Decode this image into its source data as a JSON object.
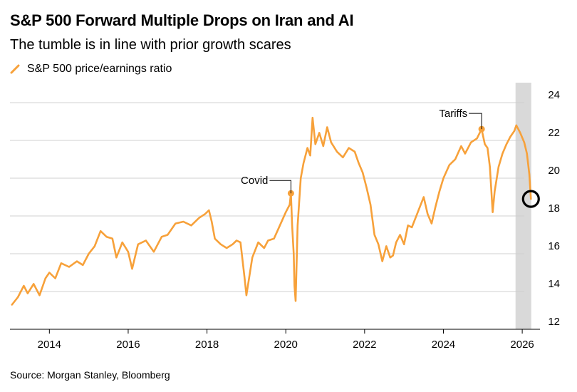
{
  "header": {
    "title": "S&P 500 Forward Multiple Drops on Iran and AI",
    "subtitle": "The tumble is in line with prior growth scares"
  },
  "footer": {
    "source": "Source: Morgan Stanley, Bloomberg"
  },
  "colors": {
    "series": "#f7a13a",
    "highlight": "#d9d9d9",
    "grid": "#d0d0d0",
    "axis": "#000000"
  },
  "chart_data": {
    "type": "line",
    "title": "S&P 500 Forward Multiple Drops on Iran and AI",
    "subtitle": "The tumble is in line with prior growth scares",
    "legend": {
      "placement": "top-left",
      "entries": [
        "S&P 500 price/earnings ratio"
      ]
    },
    "xlabel": "",
    "ylabel": "",
    "x_ticks": [
      "2014",
      "2016",
      "2018",
      "2020",
      "2022",
      "2024",
      "2026"
    ],
    "y_ticks": [
      "12",
      "14",
      "16",
      "18",
      "20",
      "22",
      "24"
    ],
    "xlim": [
      2013.0,
      2026.45
    ],
    "ylim": [
      12,
      24
    ],
    "y_axis_side": "right",
    "grid": "horizontal",
    "highlight_band": {
      "x_start": 2025.83,
      "x_end": 2026.23
    },
    "annotations": [
      {
        "label": "Covid",
        "x": 2020.13,
        "y": 19.2
      },
      {
        "label": "Tariffs",
        "x": 2024.97,
        "y": 22.6
      }
    ],
    "end_marker": {
      "x": 2026.22,
      "y": 18.9
    },
    "series": [
      {
        "name": "S&P 500 price/earnings ratio",
        "x": [
          2013.05,
          2013.2,
          2013.35,
          2013.45,
          2013.6,
          2013.75,
          2013.9,
          2014.0,
          2014.15,
          2014.3,
          2014.5,
          2014.7,
          2014.85,
          2015.0,
          2015.15,
          2015.3,
          2015.45,
          2015.6,
          2015.7,
          2015.85,
          2016.0,
          2016.1,
          2016.25,
          2016.45,
          2016.65,
          2016.85,
          2017.0,
          2017.2,
          2017.4,
          2017.6,
          2017.8,
          2017.95,
          2018.05,
          2018.12,
          2018.2,
          2018.35,
          2018.5,
          2018.65,
          2018.75,
          2018.85,
          2018.95,
          2019.0,
          2019.15,
          2019.3,
          2019.45,
          2019.55,
          2019.7,
          2019.85,
          2020.0,
          2020.1,
          2020.13,
          2020.16,
          2020.2,
          2020.22,
          2020.25,
          2020.3,
          2020.38,
          2020.45,
          2020.55,
          2020.62,
          2020.68,
          2020.75,
          2020.85,
          2020.95,
          2021.05,
          2021.15,
          2021.3,
          2021.45,
          2021.6,
          2021.75,
          2021.85,
          2021.95,
          2022.05,
          2022.15,
          2022.25,
          2022.35,
          2022.45,
          2022.55,
          2022.65,
          2022.72,
          2022.8,
          2022.9,
          2023.0,
          2023.1,
          2023.2,
          2023.35,
          2023.5,
          2023.6,
          2023.7,
          2023.8,
          2023.9,
          2024.0,
          2024.15,
          2024.3,
          2024.45,
          2024.55,
          2024.7,
          2024.85,
          2024.97,
          2025.05,
          2025.12,
          2025.18,
          2025.25,
          2025.3,
          2025.4,
          2025.5,
          2025.6,
          2025.7,
          2025.8,
          2025.85,
          2025.95,
          2026.05,
          2026.12,
          2026.18,
          2026.22
        ],
        "values": [
          13.3,
          13.7,
          14.3,
          13.9,
          14.4,
          13.8,
          14.7,
          15.0,
          14.7,
          15.5,
          15.3,
          15.6,
          15.4,
          16.0,
          16.4,
          17.2,
          16.9,
          16.8,
          15.8,
          16.6,
          16.1,
          15.2,
          16.5,
          16.7,
          16.1,
          16.9,
          17.0,
          17.6,
          17.7,
          17.5,
          17.9,
          18.1,
          18.3,
          17.7,
          16.8,
          16.5,
          16.3,
          16.5,
          16.7,
          16.6,
          14.8,
          13.8,
          15.8,
          16.6,
          16.3,
          16.7,
          16.8,
          17.5,
          18.2,
          18.6,
          19.2,
          17.5,
          16.0,
          14.3,
          13.5,
          17.5,
          20.0,
          20.8,
          21.6,
          21.2,
          23.2,
          21.8,
          22.4,
          21.7,
          22.7,
          21.9,
          21.4,
          21.1,
          21.6,
          21.4,
          20.8,
          20.3,
          19.5,
          18.6,
          17.0,
          16.5,
          15.6,
          16.4,
          15.8,
          15.9,
          16.6,
          17.0,
          16.5,
          17.5,
          17.4,
          18.2,
          19.0,
          18.1,
          17.6,
          18.5,
          19.3,
          20.0,
          20.7,
          21.0,
          21.7,
          21.3,
          21.9,
          22.1,
          22.6,
          21.8,
          21.6,
          20.6,
          18.2,
          19.3,
          20.6,
          21.3,
          21.8,
          22.2,
          22.5,
          22.8,
          22.4,
          21.9,
          21.3,
          20.2,
          18.9
        ]
      }
    ]
  }
}
